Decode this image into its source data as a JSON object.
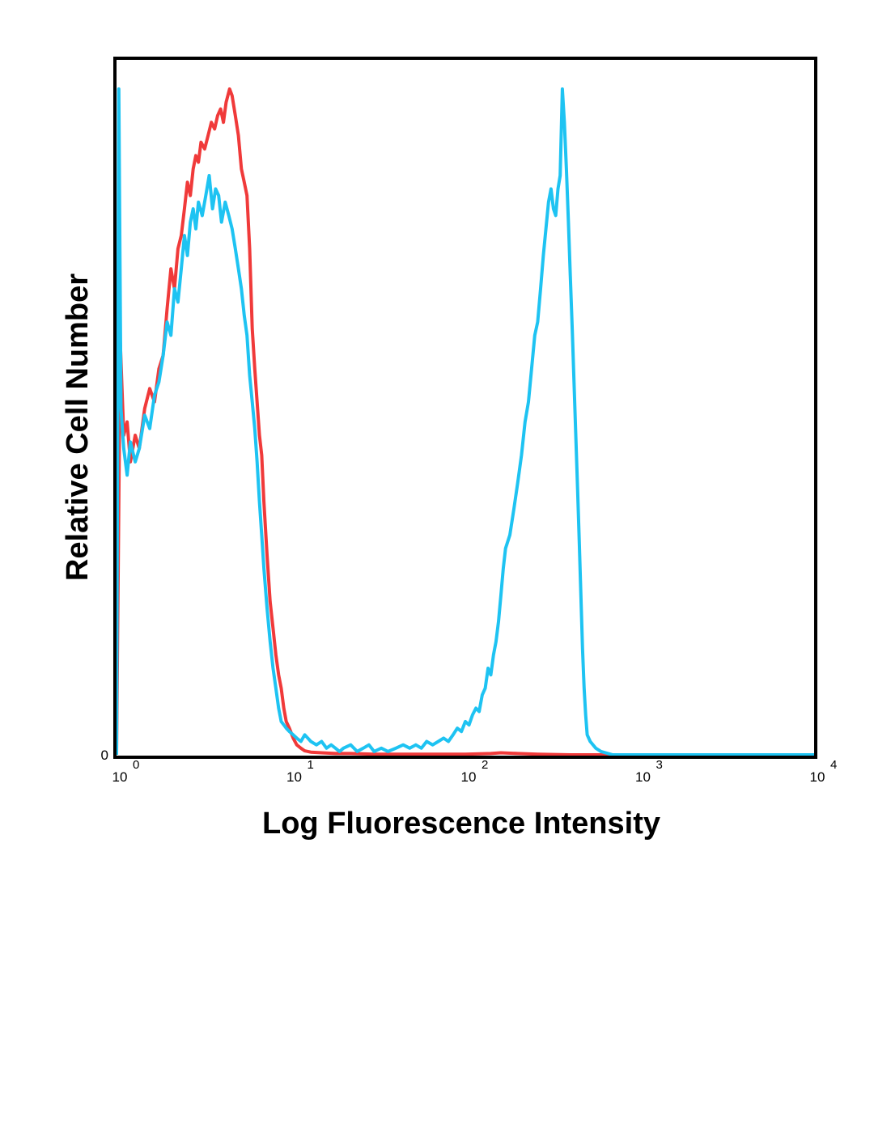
{
  "chart_data": {
    "type": "line",
    "title": "",
    "xlabel": "Log Fluorescence Intensity",
    "ylabel": "Relative Cell Number",
    "x_scale": "log",
    "xlim": [
      1,
      10000
    ],
    "ylim": [
      0,
      100
    ],
    "x_ticks": [
      {
        "base": "10",
        "exp": "0",
        "value": 1
      },
      {
        "base": "10",
        "exp": "1",
        "value": 10
      },
      {
        "base": "10",
        "exp": "2",
        "value": 100
      },
      {
        "base": "10",
        "exp": "3",
        "value": 1000
      },
      {
        "base": "10",
        "exp": "4",
        "value": 10000
      }
    ],
    "y_ticks": [
      {
        "label": "0",
        "value": 0
      }
    ],
    "grid": false,
    "legend": "none",
    "series": [
      {
        "color": "#f03a3a",
        "points": [
          [
            1.0,
            0
          ],
          [
            1.05,
            62
          ],
          [
            1.1,
            48
          ],
          [
            1.15,
            50
          ],
          [
            1.2,
            44
          ],
          [
            1.28,
            48
          ],
          [
            1.35,
            46
          ],
          [
            1.45,
            52
          ],
          [
            1.55,
            55
          ],
          [
            1.65,
            53
          ],
          [
            1.75,
            58
          ],
          [
            1.85,
            60
          ],
          [
            1.95,
            67
          ],
          [
            2.05,
            73
          ],
          [
            2.15,
            70
          ],
          [
            2.25,
            76
          ],
          [
            2.35,
            78
          ],
          [
            2.45,
            82
          ],
          [
            2.55,
            86
          ],
          [
            2.65,
            84
          ],
          [
            2.75,
            88
          ],
          [
            2.85,
            90
          ],
          [
            2.95,
            89
          ],
          [
            3.05,
            92
          ],
          [
            3.2,
            91
          ],
          [
            3.35,
            93
          ],
          [
            3.5,
            95
          ],
          [
            3.65,
            94
          ],
          [
            3.8,
            96
          ],
          [
            3.95,
            97
          ],
          [
            4.1,
            95
          ],
          [
            4.25,
            98
          ],
          [
            4.45,
            100
          ],
          [
            4.6,
            99
          ],
          [
            4.8,
            96
          ],
          [
            5.0,
            93
          ],
          [
            5.2,
            88
          ],
          [
            5.4,
            86
          ],
          [
            5.6,
            84
          ],
          [
            5.8,
            76
          ],
          [
            6.0,
            64
          ],
          [
            6.2,
            58
          ],
          [
            6.4,
            53
          ],
          [
            6.6,
            48
          ],
          [
            6.8,
            45
          ],
          [
            7.0,
            38
          ],
          [
            7.3,
            30
          ],
          [
            7.6,
            23
          ],
          [
            7.9,
            19
          ],
          [
            8.2,
            15
          ],
          [
            8.5,
            12
          ],
          [
            8.8,
            10
          ],
          [
            9.1,
            7
          ],
          [
            9.4,
            5
          ],
          [
            9.8,
            4
          ],
          [
            10.3,
            2.5
          ],
          [
            10.8,
            1.5
          ],
          [
            11.4,
            1
          ],
          [
            12,
            0.6
          ],
          [
            13,
            0.4
          ],
          [
            15,
            0.3
          ],
          [
            18,
            0.2
          ],
          [
            22,
            0.2
          ],
          [
            30,
            0.1
          ],
          [
            50,
            0.1
          ],
          [
            100,
            0.1
          ],
          [
            140,
            0.2
          ],
          [
            160,
            0.3
          ],
          [
            200,
            0.2
          ],
          [
            260,
            0.1
          ],
          [
            400,
            0
          ],
          [
            1000,
            0
          ],
          [
            10000,
            0
          ]
        ]
      },
      {
        "color": "#1ec3f2",
        "points": [
          [
            1.0,
            0
          ],
          [
            1.03,
            100
          ],
          [
            1.06,
            52
          ],
          [
            1.1,
            46
          ],
          [
            1.15,
            42
          ],
          [
            1.2,
            47
          ],
          [
            1.28,
            44
          ],
          [
            1.35,
            46
          ],
          [
            1.45,
            51
          ],
          [
            1.55,
            49
          ],
          [
            1.65,
            54
          ],
          [
            1.75,
            56
          ],
          [
            1.85,
            60
          ],
          [
            1.95,
            65
          ],
          [
            2.05,
            63
          ],
          [
            2.15,
            70
          ],
          [
            2.25,
            68
          ],
          [
            2.35,
            73
          ],
          [
            2.45,
            78
          ],
          [
            2.55,
            75
          ],
          [
            2.65,
            80
          ],
          [
            2.75,
            82
          ],
          [
            2.85,
            79
          ],
          [
            2.95,
            83
          ],
          [
            3.1,
            81
          ],
          [
            3.25,
            84
          ],
          [
            3.4,
            87
          ],
          [
            3.55,
            82
          ],
          [
            3.7,
            85
          ],
          [
            3.85,
            84
          ],
          [
            4.0,
            80
          ],
          [
            4.2,
            83
          ],
          [
            4.4,
            81
          ],
          [
            4.6,
            79
          ],
          [
            4.8,
            76
          ],
          [
            5.0,
            73
          ],
          [
            5.2,
            70
          ],
          [
            5.4,
            66
          ],
          [
            5.6,
            63
          ],
          [
            5.8,
            57
          ],
          [
            6.0,
            53
          ],
          [
            6.2,
            49
          ],
          [
            6.4,
            44
          ],
          [
            6.6,
            38
          ],
          [
            6.8,
            33
          ],
          [
            7.0,
            28
          ],
          [
            7.3,
            22
          ],
          [
            7.6,
            17
          ],
          [
            7.9,
            13
          ],
          [
            8.2,
            10
          ],
          [
            8.5,
            7
          ],
          [
            8.8,
            5
          ],
          [
            9.1,
            4.5
          ],
          [
            9.4,
            4
          ],
          [
            9.8,
            3.5
          ],
          [
            10.3,
            3
          ],
          [
            10.8,
            2.5
          ],
          [
            11.4,
            2
          ],
          [
            12,
            3
          ],
          [
            13,
            2
          ],
          [
            14,
            1.5
          ],
          [
            15,
            2
          ],
          [
            16,
            1
          ],
          [
            17,
            1.5
          ],
          [
            18,
            1
          ],
          [
            19,
            0.5
          ],
          [
            20,
            1
          ],
          [
            22,
            1.5
          ],
          [
            24,
            0.5
          ],
          [
            26,
            1
          ],
          [
            28,
            1.5
          ],
          [
            30,
            0.5
          ],
          [
            33,
            1
          ],
          [
            36,
            0.5
          ],
          [
            40,
            1
          ],
          [
            44,
            1.5
          ],
          [
            48,
            1
          ],
          [
            52,
            1.5
          ],
          [
            56,
            1
          ],
          [
            60,
            2
          ],
          [
            65,
            1.5
          ],
          [
            70,
            2
          ],
          [
            75,
            2.5
          ],
          [
            80,
            2
          ],
          [
            85,
            3
          ],
          [
            90,
            4
          ],
          [
            95,
            3.5
          ],
          [
            100,
            5
          ],
          [
            105,
            4.5
          ],
          [
            110,
            6
          ],
          [
            115,
            7
          ],
          [
            120,
            6.5
          ],
          [
            125,
            9
          ],
          [
            130,
            10
          ],
          [
            135,
            13
          ],
          [
            140,
            12
          ],
          [
            145,
            15
          ],
          [
            150,
            17
          ],
          [
            155,
            20
          ],
          [
            160,
            24
          ],
          [
            165,
            28
          ],
          [
            170,
            31
          ],
          [
            180,
            33
          ],
          [
            190,
            37
          ],
          [
            200,
            41
          ],
          [
            210,
            45
          ],
          [
            220,
            50
          ],
          [
            230,
            53
          ],
          [
            240,
            58
          ],
          [
            250,
            63
          ],
          [
            260,
            65
          ],
          [
            270,
            70
          ],
          [
            280,
            75
          ],
          [
            290,
            79
          ],
          [
            300,
            83
          ],
          [
            310,
            85
          ],
          [
            320,
            82
          ],
          [
            330,
            81
          ],
          [
            340,
            85
          ],
          [
            350,
            87
          ],
          [
            360,
            100
          ],
          [
            370,
            95
          ],
          [
            380,
            88
          ],
          [
            390,
            80
          ],
          [
            400,
            72
          ],
          [
            410,
            64
          ],
          [
            420,
            56
          ],
          [
            430,
            48
          ],
          [
            440,
            40
          ],
          [
            450,
            32
          ],
          [
            460,
            24
          ],
          [
            470,
            16
          ],
          [
            480,
            10
          ],
          [
            490,
            6
          ],
          [
            500,
            3
          ],
          [
            520,
            2
          ],
          [
            560,
            1
          ],
          [
            600,
            0.5
          ],
          [
            700,
            0
          ],
          [
            1000,
            0
          ],
          [
            10000,
            0
          ]
        ]
      }
    ]
  }
}
